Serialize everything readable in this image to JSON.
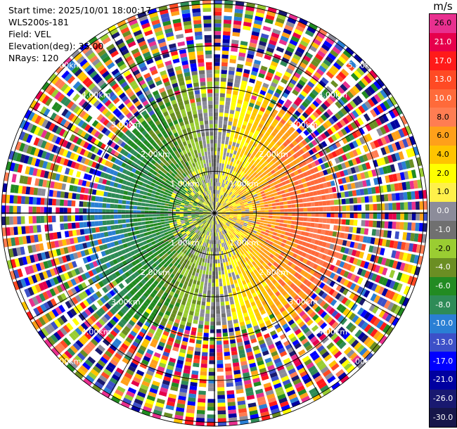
{
  "info": {
    "start_time": "Start time: 2025/10/01 18:00:17",
    "station": "WLS200s-181",
    "field": "Field: VEL",
    "elevation": "Elevation(deg): 35.00",
    "nrays": "NRays: 120"
  },
  "colorbar": {
    "unit": "m/s",
    "bins": [
      {
        "label": "26.0",
        "color": "#e8308f"
      },
      {
        "label": "21.0",
        "color": "#e6004c"
      },
      {
        "label": "17.0",
        "color": "#ff1a1a"
      },
      {
        "label": "13.0",
        "color": "#ff4a24"
      },
      {
        "label": "10.0",
        "color": "#ff6a3a"
      },
      {
        "label": "8.0",
        "color": "#ff7d52"
      },
      {
        "label": "6.0",
        "color": "#ffa01a"
      },
      {
        "label": "4.0",
        "color": "#ffc400"
      },
      {
        "label": "2.0",
        "color": "#ffff00"
      },
      {
        "label": "1.0",
        "color": "#fff04a"
      },
      {
        "label": "0.0",
        "color": "#8c8c9a"
      },
      {
        "label": "-1.0",
        "color": "#707070"
      },
      {
        "label": "-2.0",
        "color": "#9acd32"
      },
      {
        "label": "-4.0",
        "color": "#6b8e23"
      },
      {
        "label": "-6.0",
        "color": "#228b22"
      },
      {
        "label": "-8.0",
        "color": "#2e8b57"
      },
      {
        "label": "-10.0",
        "color": "#2a7fd4"
      },
      {
        "label": "-13.0",
        "color": "#3c50c8"
      },
      {
        "label": "-17.0",
        "color": "#0000ff"
      },
      {
        "label": "-21.0",
        "color": "#0000a0"
      },
      {
        "label": "-26.0",
        "color": "#191970"
      },
      {
        "label": "-30.0",
        "color": "#16164a"
      }
    ]
  },
  "rings": [
    {
      "label": "1.00km"
    },
    {
      "label": "2.00km"
    },
    {
      "label": "3.00km"
    },
    {
      "label": "4.00km"
    },
    {
      "label": "5.00km"
    }
  ]
}
